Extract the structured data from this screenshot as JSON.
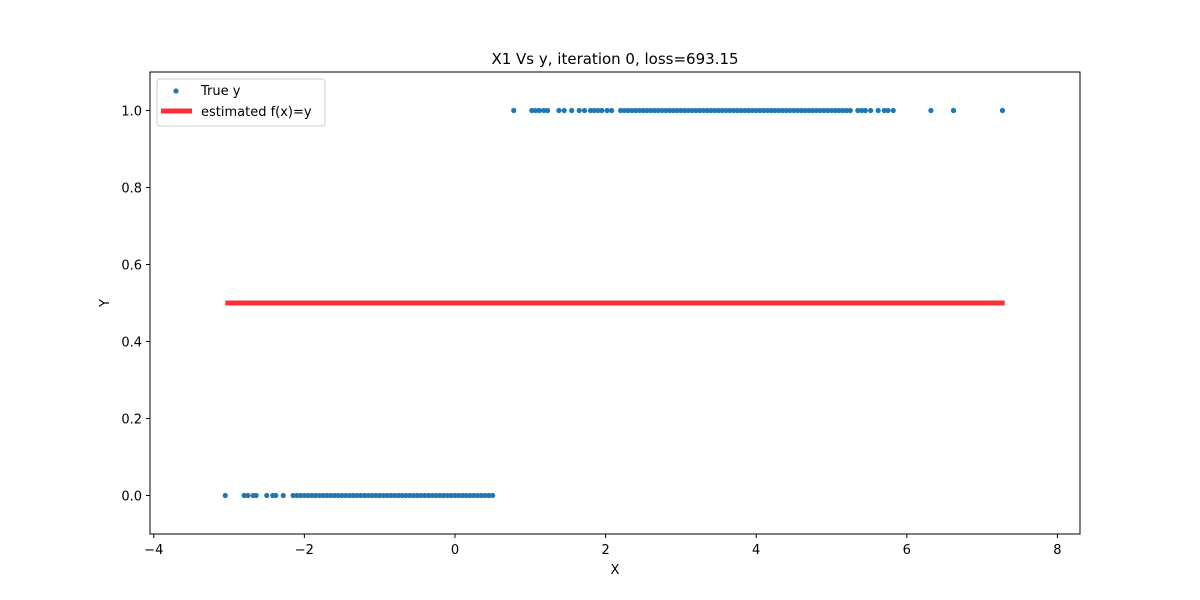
{
  "chart_data": {
    "type": "scatter",
    "title": "X1 Vs y, iteration 0, loss=693.15",
    "xlabel": "X",
    "ylabel": "Y",
    "xlim": [
      -4.05,
      8.3
    ],
    "ylim": [
      -0.1,
      1.1
    ],
    "x_ticks": [
      -4,
      -2,
      0,
      2,
      4,
      6,
      8
    ],
    "x_tick_labels": [
      "−4",
      "−2",
      "0",
      "2",
      "4",
      "6",
      "8"
    ],
    "y_ticks": [
      0.0,
      0.2,
      0.4,
      0.6,
      0.8,
      1.0
    ],
    "y_tick_labels": [
      "0.0",
      "0.2",
      "0.4",
      "0.6",
      "0.8",
      "1.0"
    ],
    "grid": false,
    "legend_position": "top-left",
    "series": [
      {
        "name": "True y",
        "kind": "scatter",
        "color": "#1f77b4",
        "points": [
          {
            "x": -3.05,
            "y": 0
          },
          {
            "x": -2.8,
            "y": 0
          },
          {
            "x": -2.75,
            "y": 0
          },
          {
            "x": -2.68,
            "y": 0
          },
          {
            "x": -2.64,
            "y": 0
          },
          {
            "x": -2.5,
            "y": 0
          },
          {
            "x": -2.42,
            "y": 0
          },
          {
            "x": -2.38,
            "y": 0
          },
          {
            "x": -2.28,
            "y": 0
          },
          {
            "x": -2.15,
            "y": 0
          },
          {
            "x": -2.1,
            "y": 0
          },
          {
            "x": -2.05,
            "y": 0
          },
          {
            "x": -2.0,
            "y": 0
          },
          {
            "x": -1.95,
            "y": 0
          },
          {
            "x": -1.9,
            "y": 0
          },
          {
            "x": -1.85,
            "y": 0
          },
          {
            "x": -1.8,
            "y": 0
          },
          {
            "x": -1.75,
            "y": 0
          },
          {
            "x": -1.7,
            "y": 0
          },
          {
            "x": -1.65,
            "y": 0
          },
          {
            "x": -1.6,
            "y": 0
          },
          {
            "x": -1.55,
            "y": 0
          },
          {
            "x": -1.5,
            "y": 0
          },
          {
            "x": -1.45,
            "y": 0
          },
          {
            "x": -1.4,
            "y": 0
          },
          {
            "x": -1.35,
            "y": 0
          },
          {
            "x": -1.3,
            "y": 0
          },
          {
            "x": -1.25,
            "y": 0
          },
          {
            "x": -1.2,
            "y": 0
          },
          {
            "x": -1.15,
            "y": 0
          },
          {
            "x": -1.1,
            "y": 0
          },
          {
            "x": -1.05,
            "y": 0
          },
          {
            "x": -1.0,
            "y": 0
          },
          {
            "x": -0.95,
            "y": 0
          },
          {
            "x": -0.9,
            "y": 0
          },
          {
            "x": -0.85,
            "y": 0
          },
          {
            "x": -0.8,
            "y": 0
          },
          {
            "x": -0.75,
            "y": 0
          },
          {
            "x": -0.7,
            "y": 0
          },
          {
            "x": -0.65,
            "y": 0
          },
          {
            "x": -0.6,
            "y": 0
          },
          {
            "x": -0.55,
            "y": 0
          },
          {
            "x": -0.5,
            "y": 0
          },
          {
            "x": -0.45,
            "y": 0
          },
          {
            "x": -0.4,
            "y": 0
          },
          {
            "x": -0.35,
            "y": 0
          },
          {
            "x": -0.3,
            "y": 0
          },
          {
            "x": -0.25,
            "y": 0
          },
          {
            "x": -0.2,
            "y": 0
          },
          {
            "x": -0.15,
            "y": 0
          },
          {
            "x": -0.1,
            "y": 0
          },
          {
            "x": -0.05,
            "y": 0
          },
          {
            "x": 0.0,
            "y": 0
          },
          {
            "x": 0.05,
            "y": 0
          },
          {
            "x": 0.1,
            "y": 0
          },
          {
            "x": 0.15,
            "y": 0
          },
          {
            "x": 0.2,
            "y": 0
          },
          {
            "x": 0.25,
            "y": 0
          },
          {
            "x": 0.3,
            "y": 0
          },
          {
            "x": 0.35,
            "y": 0
          },
          {
            "x": 0.4,
            "y": 0
          },
          {
            "x": 0.45,
            "y": 0
          },
          {
            "x": 0.5,
            "y": 0
          },
          {
            "x": 0.78,
            "y": 1
          },
          {
            "x": 1.02,
            "y": 1
          },
          {
            "x": 1.07,
            "y": 1
          },
          {
            "x": 1.12,
            "y": 1
          },
          {
            "x": 1.18,
            "y": 1
          },
          {
            "x": 1.23,
            "y": 1
          },
          {
            "x": 1.38,
            "y": 1
          },
          {
            "x": 1.45,
            "y": 1
          },
          {
            "x": 1.55,
            "y": 1
          },
          {
            "x": 1.65,
            "y": 1
          },
          {
            "x": 1.72,
            "y": 1
          },
          {
            "x": 1.8,
            "y": 1
          },
          {
            "x": 1.85,
            "y": 1
          },
          {
            "x": 1.9,
            "y": 1
          },
          {
            "x": 1.95,
            "y": 1
          },
          {
            "x": 2.02,
            "y": 1
          },
          {
            "x": 2.08,
            "y": 1
          },
          {
            "x": 2.2,
            "y": 1
          },
          {
            "x": 2.25,
            "y": 1
          },
          {
            "x": 2.3,
            "y": 1
          },
          {
            "x": 2.35,
            "y": 1
          },
          {
            "x": 2.4,
            "y": 1
          },
          {
            "x": 2.45,
            "y": 1
          },
          {
            "x": 2.5,
            "y": 1
          },
          {
            "x": 2.55,
            "y": 1
          },
          {
            "x": 2.6,
            "y": 1
          },
          {
            "x": 2.65,
            "y": 1
          },
          {
            "x": 2.7,
            "y": 1
          },
          {
            "x": 2.75,
            "y": 1
          },
          {
            "x": 2.8,
            "y": 1
          },
          {
            "x": 2.85,
            "y": 1
          },
          {
            "x": 2.9,
            "y": 1
          },
          {
            "x": 2.95,
            "y": 1
          },
          {
            "x": 3.0,
            "y": 1
          },
          {
            "x": 3.05,
            "y": 1
          },
          {
            "x": 3.1,
            "y": 1
          },
          {
            "x": 3.15,
            "y": 1
          },
          {
            "x": 3.2,
            "y": 1
          },
          {
            "x": 3.25,
            "y": 1
          },
          {
            "x": 3.3,
            "y": 1
          },
          {
            "x": 3.35,
            "y": 1
          },
          {
            "x": 3.4,
            "y": 1
          },
          {
            "x": 3.45,
            "y": 1
          },
          {
            "x": 3.5,
            "y": 1
          },
          {
            "x": 3.55,
            "y": 1
          },
          {
            "x": 3.6,
            "y": 1
          },
          {
            "x": 3.65,
            "y": 1
          },
          {
            "x": 3.7,
            "y": 1
          },
          {
            "x": 3.75,
            "y": 1
          },
          {
            "x": 3.8,
            "y": 1
          },
          {
            "x": 3.85,
            "y": 1
          },
          {
            "x": 3.9,
            "y": 1
          },
          {
            "x": 3.95,
            "y": 1
          },
          {
            "x": 4.0,
            "y": 1
          },
          {
            "x": 4.05,
            "y": 1
          },
          {
            "x": 4.1,
            "y": 1
          },
          {
            "x": 4.15,
            "y": 1
          },
          {
            "x": 4.2,
            "y": 1
          },
          {
            "x": 4.25,
            "y": 1
          },
          {
            "x": 4.3,
            "y": 1
          },
          {
            "x": 4.35,
            "y": 1
          },
          {
            "x": 4.4,
            "y": 1
          },
          {
            "x": 4.45,
            "y": 1
          },
          {
            "x": 4.5,
            "y": 1
          },
          {
            "x": 4.55,
            "y": 1
          },
          {
            "x": 4.6,
            "y": 1
          },
          {
            "x": 4.65,
            "y": 1
          },
          {
            "x": 4.7,
            "y": 1
          },
          {
            "x": 4.75,
            "y": 1
          },
          {
            "x": 4.8,
            "y": 1
          },
          {
            "x": 4.85,
            "y": 1
          },
          {
            "x": 4.9,
            "y": 1
          },
          {
            "x": 4.95,
            "y": 1
          },
          {
            "x": 5.0,
            "y": 1
          },
          {
            "x": 5.05,
            "y": 1
          },
          {
            "x": 5.1,
            "y": 1
          },
          {
            "x": 5.15,
            "y": 1
          },
          {
            "x": 5.2,
            "y": 1
          },
          {
            "x": 5.25,
            "y": 1
          },
          {
            "x": 5.35,
            "y": 1
          },
          {
            "x": 5.4,
            "y": 1
          },
          {
            "x": 5.45,
            "y": 1
          },
          {
            "x": 5.52,
            "y": 1
          },
          {
            "x": 5.62,
            "y": 1
          },
          {
            "x": 5.7,
            "y": 1
          },
          {
            "x": 5.75,
            "y": 1
          },
          {
            "x": 5.82,
            "y": 1
          },
          {
            "x": 6.32,
            "y": 1
          },
          {
            "x": 6.62,
            "y": 1
          },
          {
            "x": 7.27,
            "y": 1
          }
        ]
      },
      {
        "name": "estimated f(x)=y",
        "kind": "line",
        "color": "#fb3136",
        "points": [
          {
            "x": -3.05,
            "y": 0.5
          },
          {
            "x": 7.3,
            "y": 0.5
          }
        ]
      }
    ]
  }
}
